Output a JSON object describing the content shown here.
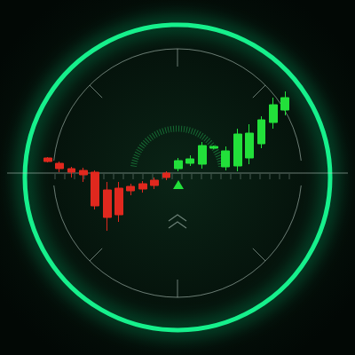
{
  "chart_data": {
    "type": "candlestick",
    "categories": [
      null,
      null,
      null,
      null,
      null,
      null,
      null,
      null,
      null,
      null,
      null,
      null,
      null,
      null,
      null,
      null,
      null,
      null,
      null,
      null,
      null
    ],
    "values": [
      [
        17,
        13,
        12,
        18
      ],
      [
        11,
        5,
        1,
        13
      ],
      [
        5,
        1,
        -5,
        7
      ],
      [
        3,
        -2,
        -10,
        6
      ],
      [
        1,
        -37,
        -41,
        3
      ],
      [
        -19,
        -50,
        -65,
        -10
      ],
      [
        -17,
        -47,
        -55,
        -10
      ],
      [
        -15,
        -20,
        -25,
        -12
      ],
      [
        -12,
        -18,
        -22,
        -9
      ],
      [
        -8,
        -14,
        -18,
        -5
      ],
      [
        0,
        -5,
        -8,
        2
      ],
      [
        5,
        14,
        2,
        17
      ],
      [
        11,
        16,
        8,
        20
      ],
      [
        10,
        31,
        5,
        35
      ],
      [
        28,
        30,
        27,
        31
      ],
      [
        7,
        25,
        3,
        30
      ],
      [
        8,
        44,
        2,
        50
      ],
      [
        17,
        45,
        10,
        55
      ],
      [
        33,
        60,
        28,
        64
      ],
      [
        57,
        77,
        50,
        85
      ],
      [
        71,
        85,
        65,
        92
      ]
    ],
    "colors": [
      "#e0281e",
      "#e0281e",
      "#e0281e",
      "#e0281e",
      "#e0281e",
      "#e0281e",
      "#e0281e",
      "#e0281e",
      "#e0281e",
      "#e0281e",
      "#e0281e",
      "#22e03a",
      "#22e03a",
      "#22e03a",
      "#22e03a",
      "#22e03a",
      "#22e03a",
      "#22e03a",
      "#22e03a",
      "#22e03a",
      "#22e03a"
    ],
    "ylim": [
      -100,
      100
    ],
    "grid": false,
    "tick_labels": false
  }
}
